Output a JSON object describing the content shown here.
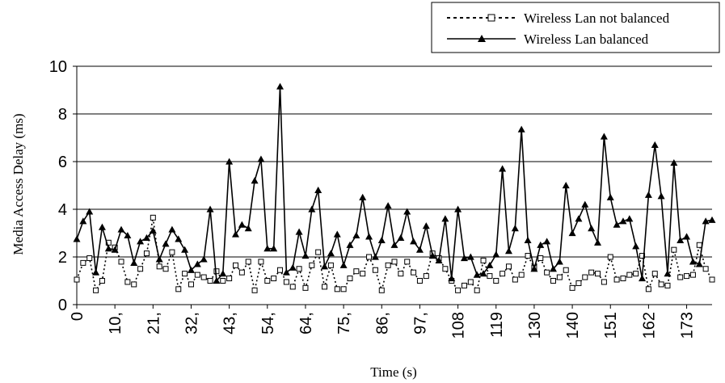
{
  "chart_data": {
    "type": "line",
    "title": "",
    "xlabel": "Time (s)",
    "ylabel": "Media Access Delay (ms)",
    "ylim": [
      0,
      10
    ],
    "yticks": [
      "0",
      "2",
      "4",
      "6",
      "8",
      "10"
    ],
    "x_tick_labels": [
      "0",
      "10,",
      "21,",
      "32,",
      "43,",
      "54,",
      "64,",
      "75,",
      "86,",
      "97,",
      "108",
      "119",
      "130",
      "140",
      "151",
      "162",
      "173"
    ],
    "grid": "horizontal",
    "legend_position": "top-right",
    "series": [
      {
        "name": "Wireless Lan not balanced",
        "style": "dotted",
        "marker": "square",
        "color": "#000000",
        "values": [
          1.05,
          1.75,
          1.95,
          0.6,
          1.0,
          2.6,
          2.4,
          1.8,
          0.95,
          0.85,
          1.5,
          2.15,
          3.65,
          1.6,
          1.5,
          2.2,
          0.65,
          1.3,
          0.85,
          1.25,
          1.15,
          1.0,
          1.4,
          1.0,
          1.1,
          1.65,
          1.35,
          1.8,
          0.6,
          1.8,
          1.0,
          1.1,
          1.45,
          0.95,
          0.75,
          1.5,
          0.7,
          1.65,
          2.2,
          0.75,
          1.65,
          0.65,
          0.65,
          1.1,
          1.4,
          1.3,
          2.0,
          1.45,
          0.6,
          1.65,
          1.8,
          1.3,
          1.8,
          1.35,
          1.0,
          1.2,
          2.15,
          1.95,
          1.5,
          1.0,
          0.6,
          0.8,
          0.95,
          0.6,
          1.85,
          1.2,
          1.0,
          1.3,
          1.6,
          1.05,
          1.25,
          2.05,
          1.55,
          1.95,
          1.35,
          1.0,
          1.15,
          1.45,
          0.7,
          0.9,
          1.15,
          1.35,
          1.3,
          0.95,
          2.0,
          1.05,
          1.1,
          1.25,
          1.3,
          2.05,
          0.65,
          1.3,
          0.85,
          0.8,
          2.3,
          1.15,
          1.2,
          1.25,
          2.5,
          1.5,
          1.05
        ]
      },
      {
        "name": "Wireless Lan balanced",
        "style": "solid",
        "marker": "triangle",
        "color": "#000000",
        "values": [
          2.75,
          3.5,
          3.9,
          1.35,
          3.25,
          2.35,
          2.3,
          3.15,
          2.9,
          1.75,
          2.65,
          2.8,
          3.1,
          1.9,
          2.55,
          3.15,
          2.75,
          2.3,
          1.45,
          1.7,
          1.9,
          4.0,
          1.0,
          1.3,
          6.0,
          2.95,
          3.35,
          3.2,
          5.2,
          6.1,
          2.35,
          2.35,
          9.15,
          1.35,
          1.55,
          3.05,
          2.05,
          4.0,
          4.8,
          1.6,
          2.15,
          2.95,
          1.65,
          2.5,
          2.9,
          4.5,
          2.85,
          2.0,
          2.7,
          4.15,
          2.5,
          2.8,
          3.9,
          2.65,
          2.3,
          3.3,
          2.05,
          1.85,
          3.6,
          1.1,
          4.0,
          1.95,
          2.0,
          1.25,
          1.3,
          1.65,
          2.1,
          5.7,
          2.25,
          3.2,
          7.35,
          2.7,
          1.5,
          2.5,
          2.65,
          1.5,
          1.8,
          5.0,
          3.0,
          3.6,
          4.2,
          3.2,
          2.6,
          7.05,
          4.5,
          3.35,
          3.5,
          3.6,
          2.45,
          1.1,
          4.6,
          6.7,
          4.55,
          1.3,
          5.95,
          2.7,
          2.85,
          1.8,
          1.7,
          3.5,
          3.55
        ]
      }
    ]
  }
}
